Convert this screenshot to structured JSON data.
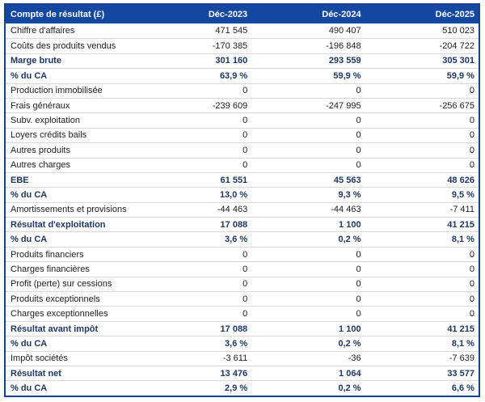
{
  "colors": {
    "header_bg": "#14479f",
    "header_text": "#ffffff",
    "emphasis_text": "#1f3864",
    "body_text": "#1d1d1d",
    "border": "#1c3e96",
    "separator": "#d9d9d9"
  },
  "table": {
    "header": {
      "label": "Compte de résultat (£)",
      "columns": [
        "Déc-2023",
        "Déc-2024",
        "Déc-2025"
      ]
    },
    "rows": [
      {
        "label": "Chiffre d'affaires",
        "values": [
          "471 545",
          "490 407",
          "510 023"
        ],
        "emphasis": false
      },
      {
        "label": "Coûts des produits vendus",
        "values": [
          "-170 385",
          "-196 848",
          "-204 722"
        ],
        "emphasis": false
      },
      {
        "label": "Marge brute",
        "values": [
          "301 160",
          "293 559",
          "305 301"
        ],
        "emphasis": true
      },
      {
        "label": "% du CA",
        "values": [
          "63,9 %",
          "59,9 %",
          "59,9 %"
        ],
        "emphasis": true
      },
      {
        "label": "Production immobilisée",
        "values": [
          "0",
          "0",
          "0"
        ],
        "emphasis": false
      },
      {
        "label": "Frais généraux",
        "values": [
          "-239 609",
          "-247 995",
          "-256 675"
        ],
        "emphasis": false
      },
      {
        "label": "Subv. exploitation",
        "values": [
          "0",
          "0",
          "0"
        ],
        "emphasis": false
      },
      {
        "label": "Loyers crédits bails",
        "values": [
          "0",
          "0",
          "0"
        ],
        "emphasis": false
      },
      {
        "label": "Autres produits",
        "values": [
          "0",
          "0",
          "0"
        ],
        "emphasis": false
      },
      {
        "label": "Autres charges",
        "values": [
          "0",
          "0",
          "0"
        ],
        "emphasis": false
      },
      {
        "label": "EBE",
        "values": [
          "61 551",
          "45 563",
          "48 626"
        ],
        "emphasis": true
      },
      {
        "label": "% du CA",
        "values": [
          "13,0 %",
          "9,3 %",
          "9,5 %"
        ],
        "emphasis": true
      },
      {
        "label": "Amortissements et provisions",
        "values": [
          "-44 463",
          "-44 463",
          "-7 411"
        ],
        "emphasis": false
      },
      {
        "label": "Résultat d'exploitation",
        "values": [
          "17 088",
          "1 100",
          "41 215"
        ],
        "emphasis": true
      },
      {
        "label": "% du CA",
        "values": [
          "3,6 %",
          "0,2 %",
          "8,1 %"
        ],
        "emphasis": true
      },
      {
        "label": "Produits financiers",
        "values": [
          "0",
          "0",
          "0"
        ],
        "emphasis": false
      },
      {
        "label": "Charges financières",
        "values": [
          "0",
          "0",
          "0"
        ],
        "emphasis": false
      },
      {
        "label": "Profit (perte) sur cessions",
        "values": [
          "0",
          "0",
          "0"
        ],
        "emphasis": false
      },
      {
        "label": "Produits exceptionnels",
        "values": [
          "0",
          "0",
          "0"
        ],
        "emphasis": false
      },
      {
        "label": "Charges exceptionnelles",
        "values": [
          "0",
          "0",
          "0"
        ],
        "emphasis": false
      },
      {
        "label": "Résultat avant impôt",
        "values": [
          "17 088",
          "1 100",
          "41 215"
        ],
        "emphasis": true
      },
      {
        "label": "% du CA",
        "values": [
          "3,6 %",
          "0,2 %",
          "8,1 %"
        ],
        "emphasis": true
      },
      {
        "label": "Impôt sociétés",
        "values": [
          "-3 611",
          "-36",
          "-7 639"
        ],
        "emphasis": false
      },
      {
        "label": "Résultat net",
        "values": [
          "13 476",
          "1 064",
          "33 577"
        ],
        "emphasis": true
      },
      {
        "label": "% du CA",
        "values": [
          "2,9 %",
          "0,2 %",
          "6,6 %"
        ],
        "emphasis": true
      }
    ]
  }
}
